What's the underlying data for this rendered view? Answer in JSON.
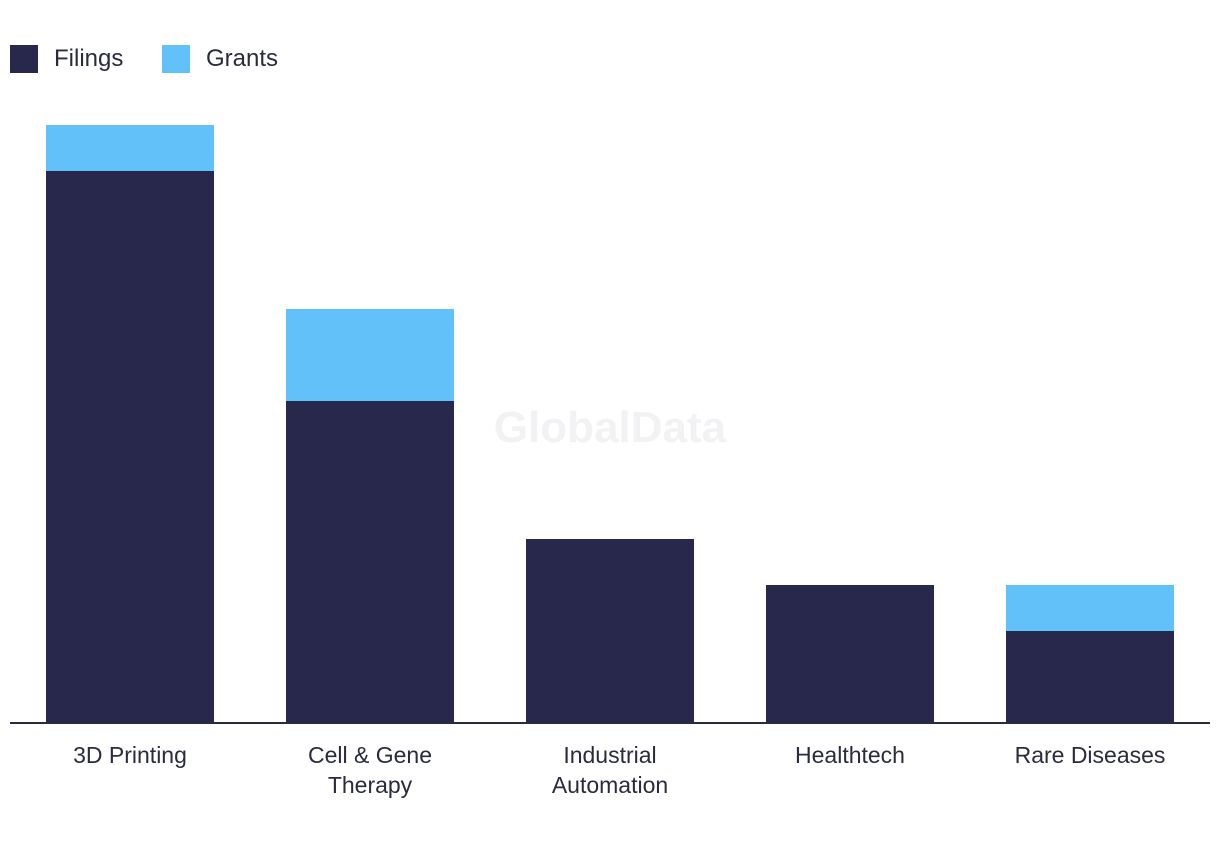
{
  "chart_data": {
    "type": "bar",
    "stacked": true,
    "categories": [
      "3D Printing",
      "Cell & Gene Therapy",
      "Industrial Automation",
      "Healthtech",
      "Rare Diseases"
    ],
    "category_lines": [
      [
        "3D Printing"
      ],
      [
        "Cell & Gene",
        "Therapy"
      ],
      [
        "Industrial",
        "Automation"
      ],
      [
        "Healthtech"
      ],
      [
        "Rare Diseases"
      ]
    ],
    "series": [
      {
        "name": "Filings",
        "color": "#27284c",
        "values": [
          12,
          7,
          4,
          3,
          2
        ]
      },
      {
        "name": "Grants",
        "color": "#62c1f8",
        "values": [
          1,
          2,
          0,
          0,
          1
        ]
      }
    ],
    "title": "",
    "xlabel": "",
    "ylabel": "",
    "ylim": [
      0,
      13
    ],
    "grid": false,
    "legend_position": "top-left",
    "watermark": "GlobalData"
  }
}
